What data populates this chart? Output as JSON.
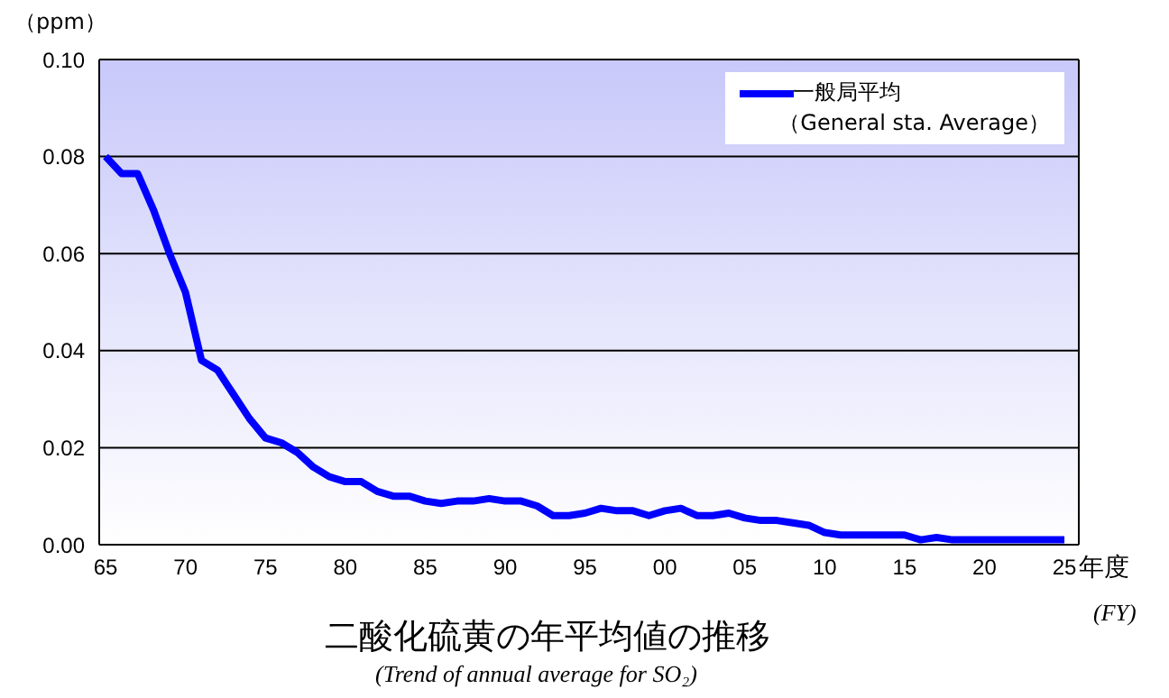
{
  "chart_data": {
    "type": "line",
    "title": "二酸化硫黄の年平均値の推移",
    "subtitle": "(Trend of annual average for SO₂)",
    "xlabel": "年度\n(FY)",
    "ylabel": "（ppm）",
    "x": [
      1965,
      1966,
      1967,
      1968,
      1969,
      1970,
      1971,
      1972,
      1973,
      1974,
      1975,
      1976,
      1977,
      1978,
      1979,
      1980,
      1981,
      1982,
      1983,
      1984,
      1985,
      1986,
      1987,
      1988,
      1989,
      1990,
      1991,
      1992,
      1993,
      1994,
      1995,
      1996,
      1997,
      1998,
      1999,
      2000,
      2001,
      2002,
      2003,
      2004,
      2005,
      2006,
      2007,
      2008,
      2009,
      2010,
      2011,
      2012,
      2013,
      2014,
      2015,
      2016,
      2017,
      2018,
      2019,
      2020,
      2021,
      2022,
      2023,
      2024,
      2025
    ],
    "series": [
      {
        "name": "一般局平均（General sta. Average）",
        "color": "#0000ff",
        "values": [
          0.08,
          0.0765,
          0.0765,
          0.069,
          0.06,
          0.052,
          0.038,
          0.036,
          0.031,
          0.026,
          0.022,
          0.021,
          0.019,
          0.016,
          0.014,
          0.013,
          0.013,
          0.011,
          0.01,
          0.01,
          0.009,
          0.0085,
          0.009,
          0.009,
          0.0095,
          0.009,
          0.009,
          0.008,
          0.006,
          0.006,
          0.0065,
          0.0075,
          0.007,
          0.007,
          0.006,
          0.007,
          0.0075,
          0.006,
          0.006,
          0.0065,
          0.0055,
          0.005,
          0.005,
          0.0045,
          0.004,
          0.0025,
          0.002,
          0.002,
          0.002,
          0.002,
          0.002,
          0.001,
          0.0015,
          0.001,
          0.001,
          0.001,
          0.001,
          0.001,
          0.001,
          0.001,
          0.001
        ]
      }
    ],
    "xlim": [
      1964.6,
      2025.9
    ],
    "xticks": [
      {
        "value": 1965,
        "label": "65"
      },
      {
        "value": 1970,
        "label": "70"
      },
      {
        "value": 1975,
        "label": "75"
      },
      {
        "value": 1980,
        "label": "80"
      },
      {
        "value": 1985,
        "label": "85"
      },
      {
        "value": 1990,
        "label": "90"
      },
      {
        "value": 1995,
        "label": "95"
      },
      {
        "value": 2000,
        "label": "00"
      },
      {
        "value": 2005,
        "label": "05"
      },
      {
        "value": 2010,
        "label": "10"
      },
      {
        "value": 2015,
        "label": "15"
      },
      {
        "value": 2020,
        "label": "20"
      },
      {
        "value": 2025,
        "label": "25"
      }
    ],
    "ylim": [
      0,
      0.1
    ],
    "yticks": [
      {
        "value": 0,
        "label": "0.00"
      },
      {
        "value": 0.02,
        "label": "0.02"
      },
      {
        "value": 0.04,
        "label": "0.04"
      },
      {
        "value": 0.06,
        "label": "0.06"
      },
      {
        "value": 0.08,
        "label": "0.08"
      },
      {
        "value": 0.1,
        "label": "0.10"
      }
    ],
    "grid": "y",
    "legend": "top right",
    "marker": "none",
    "line_style": "solid"
  }
}
